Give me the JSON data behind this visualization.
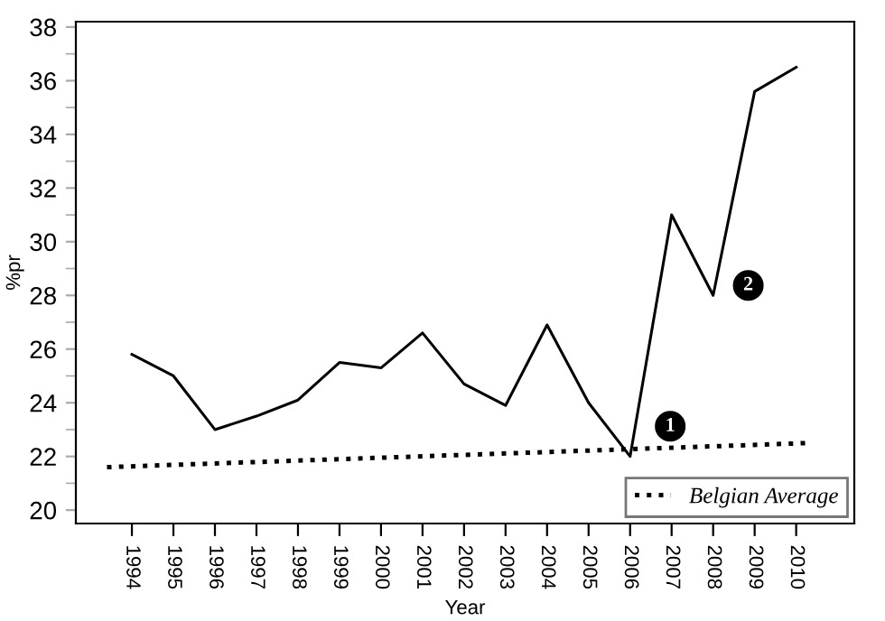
{
  "chart_data": {
    "type": "line",
    "xlabel": "Year",
    "ylabel": "%pr",
    "x": [
      1994,
      1995,
      1996,
      1997,
      1998,
      1999,
      2000,
      2001,
      2002,
      2003,
      2004,
      2005,
      2006,
      2007,
      2008,
      2009,
      2010
    ],
    "series": [
      {
        "color": "#000000",
        "line_style": "solid",
        "values": [
          25.8,
          25.0,
          23.0,
          23.5,
          24.1,
          25.5,
          25.3,
          26.6,
          24.7,
          23.9,
          26.9,
          24.0,
          22.0,
          31.0,
          28.0,
          35.6,
          36.5
        ]
      },
      {
        "name": "Belgian Average",
        "color": "#000000",
        "line_style": "dotted",
        "x": [
          1993.4,
          2010.3
        ],
        "values": [
          21.6,
          22.5
        ]
      }
    ],
    "annotations": [
      {
        "text": "1",
        "x": 2006,
        "y": 22.0
      },
      {
        "text": "2",
        "x": 2008,
        "y": 28.0
      }
    ],
    "xlim": [
      1992.65,
      2011.4
    ],
    "xticks": [
      1994,
      1995,
      1996,
      1997,
      1998,
      1999,
      2000,
      2001,
      2002,
      2003,
      2004,
      2005,
      2006,
      2007,
      2008,
      2009,
      2010
    ],
    "ylim": [
      19.5,
      38.2
    ],
    "yticks": [
      20,
      22,
      24,
      26,
      28,
      30,
      32,
      34,
      36,
      38
    ],
    "grid": false,
    "legend": "bottom right",
    "marker": "none"
  }
}
